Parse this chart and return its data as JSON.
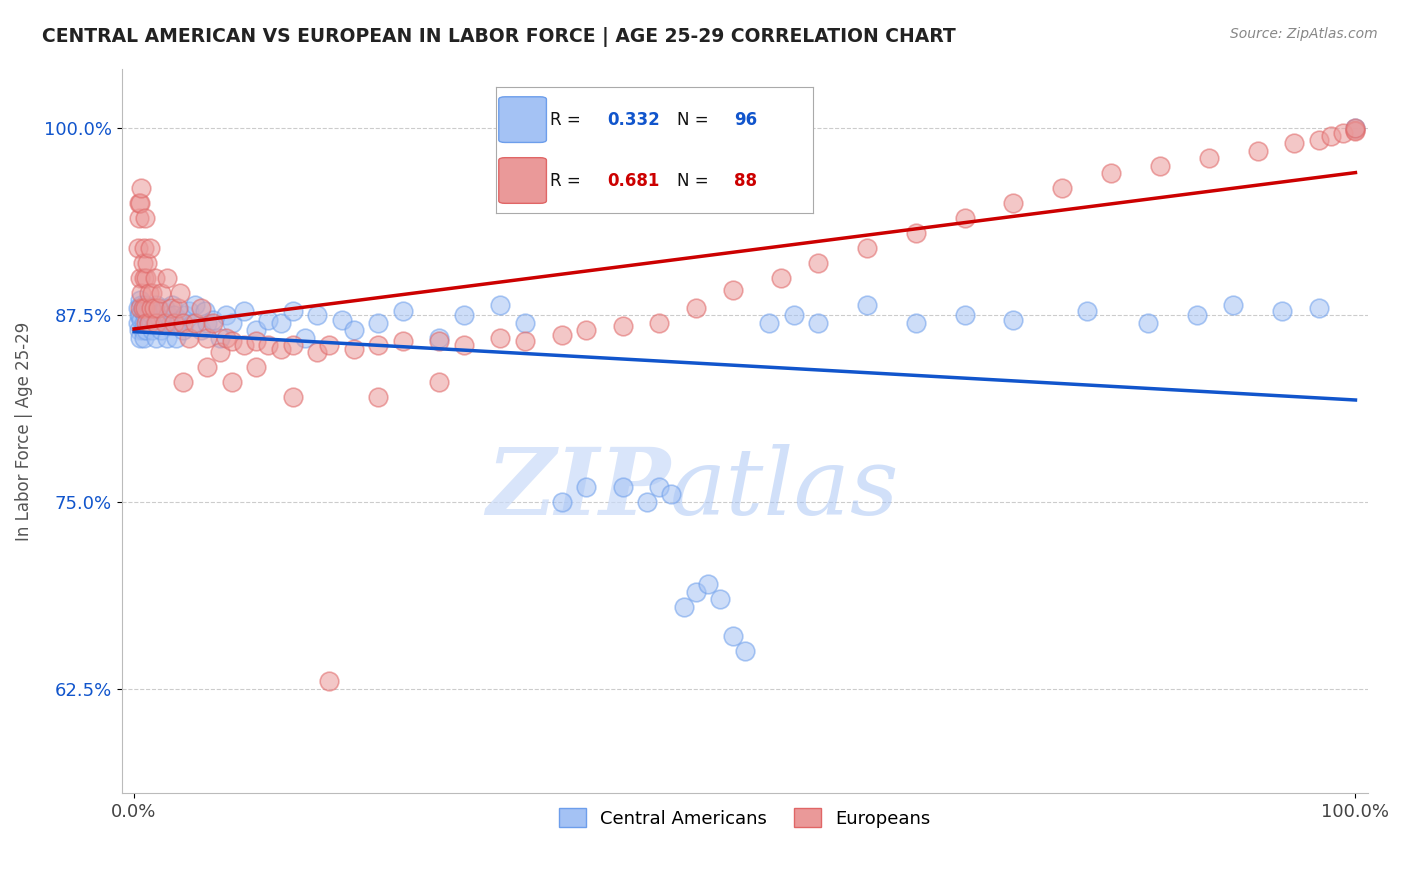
{
  "title": "CENTRAL AMERICAN VS EUROPEAN IN LABOR FORCE | AGE 25-29 CORRELATION CHART",
  "source": "Source: ZipAtlas.com",
  "ylabel": "In Labor Force | Age 25-29",
  "r_blue": 0.332,
  "n_blue": 96,
  "r_pink": 0.681,
  "n_pink": 88,
  "blue_color": "#a4c2f4",
  "blue_edge_color": "#6d9eeb",
  "pink_color": "#ea9999",
  "pink_edge_color": "#e06666",
  "blue_line_color": "#1155cc",
  "pink_line_color": "#cc0000",
  "y_tick_color": "#1155cc",
  "watermark_color": "#c9daf8",
  "background_color": "#ffffff",
  "grid_color": "#cccccc",
  "legend_blue_label": "Central Americans",
  "legend_pink_label": "Europeans",
  "xlim": [
    -0.01,
    1.01
  ],
  "ylim": [
    0.555,
    1.04
  ],
  "y_ticks": [
    0.625,
    0.75,
    0.875,
    1.0
  ],
  "y_tick_labels": [
    "62.5%",
    "75.0%",
    "87.5%",
    "100.0%"
  ],
  "blue_x": [
    0.003,
    0.003,
    0.004,
    0.004,
    0.005,
    0.005,
    0.005,
    0.006,
    0.006,
    0.007,
    0.007,
    0.007,
    0.008,
    0.008,
    0.009,
    0.009,
    0.01,
    0.01,
    0.011,
    0.012,
    0.012,
    0.013,
    0.014,
    0.015,
    0.015,
    0.016,
    0.017,
    0.018,
    0.018,
    0.02,
    0.021,
    0.022,
    0.023,
    0.025,
    0.026,
    0.027,
    0.028,
    0.03,
    0.031,
    0.033,
    0.034,
    0.036,
    0.038,
    0.04,
    0.042,
    0.045,
    0.048,
    0.05,
    0.055,
    0.058,
    0.06,
    0.065,
    0.07,
    0.075,
    0.08,
    0.09,
    0.1,
    0.11,
    0.12,
    0.13,
    0.14,
    0.15,
    0.17,
    0.18,
    0.2,
    0.22,
    0.25,
    0.27,
    0.3,
    0.32,
    0.35,
    0.37,
    0.4,
    0.42,
    0.43,
    0.44,
    0.45,
    0.46,
    0.47,
    0.48,
    0.49,
    0.5,
    0.52,
    0.54,
    0.56,
    0.6,
    0.64,
    0.68,
    0.72,
    0.78,
    0.83,
    0.87,
    0.9,
    0.94,
    0.97,
    1.0
  ],
  "blue_y": [
    0.88,
    0.87,
    0.875,
    0.865,
    0.885,
    0.875,
    0.86,
    0.872,
    0.882,
    0.88,
    0.865,
    0.878,
    0.87,
    0.86,
    0.882,
    0.875,
    0.878,
    0.865,
    0.878,
    0.87,
    0.88,
    0.872,
    0.87,
    0.875,
    0.865,
    0.878,
    0.87,
    0.882,
    0.86,
    0.875,
    0.872,
    0.865,
    0.878,
    0.88,
    0.872,
    0.86,
    0.875,
    0.87,
    0.882,
    0.875,
    0.86,
    0.87,
    0.872,
    0.865,
    0.875,
    0.878,
    0.87,
    0.882,
    0.865,
    0.878,
    0.87,
    0.872,
    0.86,
    0.875,
    0.87,
    0.878,
    0.865,
    0.872,
    0.87,
    0.878,
    0.86,
    0.875,
    0.872,
    0.865,
    0.87,
    0.878,
    0.86,
    0.875,
    0.882,
    0.87,
    0.75,
    0.76,
    0.76,
    0.75,
    0.76,
    0.755,
    0.68,
    0.69,
    0.695,
    0.685,
    0.66,
    0.65,
    0.87,
    0.875,
    0.87,
    0.882,
    0.87,
    0.875,
    0.872,
    0.878,
    0.87,
    0.875,
    0.882,
    0.878,
    0.88,
    1.0
  ],
  "pink_x": [
    0.003,
    0.004,
    0.004,
    0.005,
    0.005,
    0.005,
    0.006,
    0.006,
    0.007,
    0.007,
    0.008,
    0.008,
    0.009,
    0.009,
    0.01,
    0.01,
    0.011,
    0.012,
    0.012,
    0.013,
    0.014,
    0.015,
    0.016,
    0.017,
    0.018,
    0.02,
    0.022,
    0.025,
    0.027,
    0.03,
    0.033,
    0.036,
    0.038,
    0.04,
    0.045,
    0.05,
    0.055,
    0.06,
    0.065,
    0.07,
    0.075,
    0.08,
    0.09,
    0.1,
    0.11,
    0.12,
    0.13,
    0.15,
    0.16,
    0.18,
    0.2,
    0.22,
    0.25,
    0.27,
    0.3,
    0.32,
    0.35,
    0.37,
    0.4,
    0.43,
    0.46,
    0.49,
    0.53,
    0.56,
    0.6,
    0.64,
    0.68,
    0.72,
    0.76,
    0.8,
    0.84,
    0.88,
    0.92,
    0.95,
    0.97,
    0.98,
    0.99,
    1.0,
    1.0,
    1.0,
    0.04,
    0.06,
    0.08,
    0.1,
    0.13,
    0.16,
    0.2,
    0.25
  ],
  "pink_y": [
    0.92,
    0.94,
    0.95,
    0.9,
    0.88,
    0.95,
    0.89,
    0.96,
    0.91,
    0.88,
    0.92,
    0.9,
    0.88,
    0.94,
    0.9,
    0.87,
    0.91,
    0.89,
    0.87,
    0.92,
    0.88,
    0.89,
    0.88,
    0.9,
    0.87,
    0.88,
    0.89,
    0.87,
    0.9,
    0.88,
    0.87,
    0.88,
    0.89,
    0.87,
    0.86,
    0.87,
    0.88,
    0.86,
    0.87,
    0.85,
    0.86,
    0.858,
    0.855,
    0.858,
    0.855,
    0.852,
    0.855,
    0.85,
    0.855,
    0.852,
    0.855,
    0.858,
    0.858,
    0.855,
    0.86,
    0.858,
    0.862,
    0.865,
    0.868,
    0.87,
    0.88,
    0.892,
    0.9,
    0.91,
    0.92,
    0.93,
    0.94,
    0.95,
    0.96,
    0.97,
    0.975,
    0.98,
    0.985,
    0.99,
    0.992,
    0.995,
    0.997,
    0.999,
    0.998,
    1.0,
    0.83,
    0.84,
    0.83,
    0.84,
    0.82,
    0.63,
    0.82,
    0.83
  ]
}
